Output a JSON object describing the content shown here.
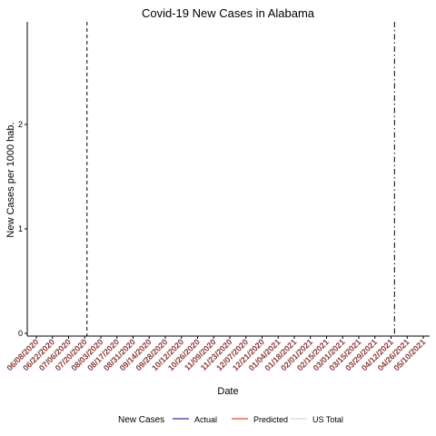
{
  "chart_data": {
    "type": "line",
    "title": "Covid-19  New Cases  in  Alabama",
    "xlabel": "Date",
    "ylabel": "New Cases  per 1000 hab.",
    "ylim": [
      0,
      3
    ],
    "yticks": [
      0,
      1,
      2
    ],
    "x_ticks": [
      "06/08/2020",
      "06/22/2020",
      "07/06/2020",
      "07/20/2020",
      "08/03/2020",
      "08/17/2020",
      "08/31/2020",
      "09/14/2020",
      "09/28/2020",
      "10/12/2020",
      "10/26/2020",
      "11/09/2020",
      "11/23/2020",
      "12/07/2020",
      "12/21/2020",
      "01/04/2021",
      "01/18/2021",
      "02/01/2021",
      "02/15/2021",
      "03/01/2021",
      "03/15/2021",
      "03/29/2021",
      "04/12/2021",
      "04/26/2021",
      "05/10/2021"
    ],
    "vlines": [
      {
        "date": "07/22/2020",
        "style": "dashed"
      },
      {
        "date": "04/15/2021",
        "style": "dashdot"
      }
    ],
    "grid": false,
    "legend_position": "bottom",
    "legend": {
      "title": "New Cases",
      "items": [
        {
          "label": "Actual",
          "color": "#00008b"
        },
        {
          "label": "Predicted",
          "color": "#e31a1c"
        },
        {
          "label": "US Total",
          "color": "#c8c8c8"
        }
      ]
    },
    "series": []
  }
}
